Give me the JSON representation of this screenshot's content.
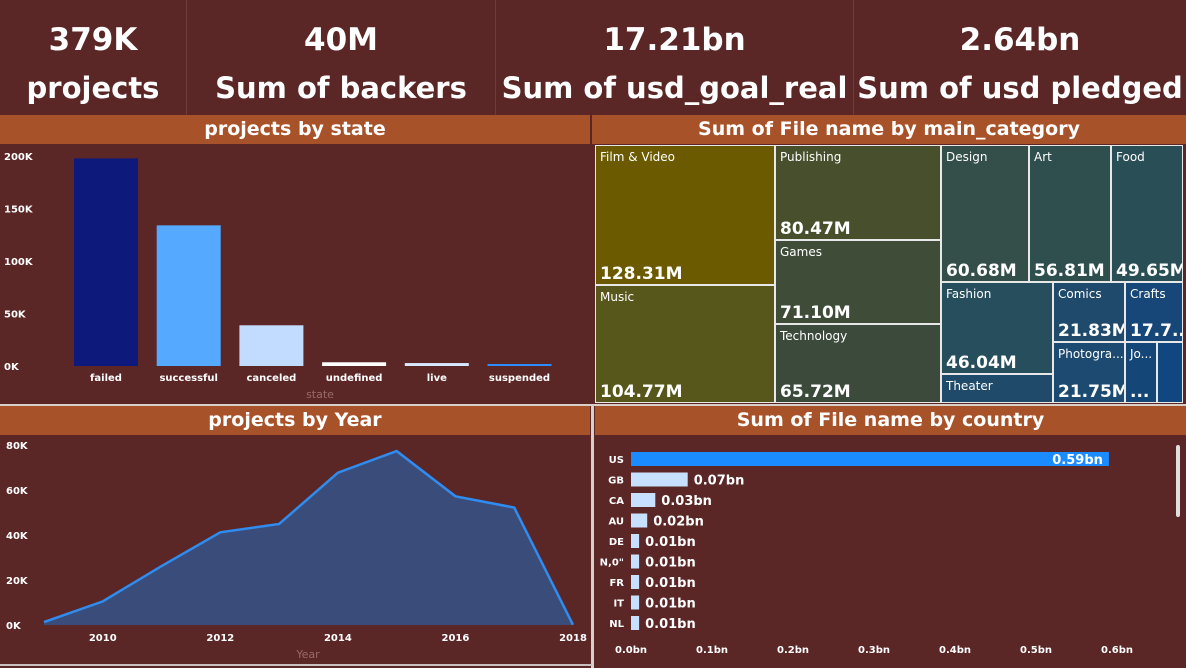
{
  "kpis": [
    {
      "value": "379K",
      "label": "projects"
    },
    {
      "value": "40M",
      "label": "Sum of backers"
    },
    {
      "value": "17.21bn",
      "label": "Sum of usd_goal_real"
    },
    {
      "value": "2.64bn",
      "label": "Sum of usd pledged"
    }
  ],
  "panels": {
    "state_title": "projects by state",
    "category_title": "Sum of File name by main_category",
    "year_title": "projects by Year",
    "country_title": "Sum of File name by country"
  },
  "treemap": [
    {
      "name": "Film & Video",
      "value": "128.31M",
      "color": "#6b5a00"
    },
    {
      "name": "Music",
      "value": "104.77M",
      "color": "#57561b"
    },
    {
      "name": "Publishing",
      "value": "80.47M",
      "color": "#474f2c"
    },
    {
      "name": "Games",
      "value": "71.10M",
      "color": "#3f4d38"
    },
    {
      "name": "Technology",
      "value": "65.72M",
      "color": "#3b4a3b"
    },
    {
      "name": "Design",
      "value": "60.68M",
      "color": "#344e4a"
    },
    {
      "name": "Art",
      "value": "56.81M",
      "color": "#2f4e4e"
    },
    {
      "name": "Food",
      "value": "49.65M",
      "color": "#2a4e55"
    },
    {
      "name": "Fashion",
      "value": "46.04M",
      "color": "#274e5c"
    },
    {
      "name": "Theater",
      "value": "",
      "color": "#1f4a6a"
    },
    {
      "name": "Comics",
      "value": "21.83M",
      "color": "#204a6c"
    },
    {
      "name": "Photogra...",
      "value": "21.75M",
      "color": "#1c4a70"
    },
    {
      "name": "Crafts",
      "value": "17.7...",
      "color": "#174778"
    },
    {
      "name": "Jo...",
      "value": "...",
      "color": "#154678"
    },
    {
      "name": "",
      "value": "",
      "color": "#114781"
    }
  ],
  "chart_data": [
    {
      "type": "bar",
      "title": "projects by state",
      "xlabel": "state",
      "ylabel": "",
      "categories": [
        "failed",
        "successful",
        "canceled",
        "undefined",
        "live",
        "suspended"
      ],
      "values": [
        197719,
        133956,
        38779,
        3562,
        2799,
        1846
      ],
      "colors": [
        "#0e197c",
        "#55a9ff",
        "#c2dcff",
        "#ffffff",
        "#d8e8ff",
        "#2d8cff"
      ],
      "yticks": [
        "0K",
        "50K",
        "100K",
        "150K",
        "200K"
      ],
      "ylim": [
        0,
        200000
      ]
    },
    {
      "type": "area",
      "title": "projects by Year",
      "xlabel": "Year",
      "ylabel": "",
      "x": [
        2009,
        2010,
        2011,
        2012,
        2013,
        2014,
        2015,
        2016,
        2017,
        2018
      ],
      "values": [
        1300,
        10500,
        26200,
        41200,
        44900,
        67700,
        77300,
        57200,
        52200,
        100
      ],
      "xticks": [
        "2010",
        "2012",
        "2014",
        "2016",
        "2018"
      ],
      "yticks": [
        "0K",
        "20K",
        "40K",
        "60K",
        "80K"
      ],
      "xlim": [
        2009,
        2018
      ],
      "ylim": [
        0,
        80000
      ],
      "line_color": "#2f8cf0",
      "fill_color": "#3a4d7a"
    },
    {
      "type": "bar",
      "orientation": "horizontal",
      "title": "Sum of File name by country",
      "categories": [
        "US",
        "GB",
        "CA",
        "AU",
        "DE",
        "N,0\"",
        "FR",
        "IT",
        "NL"
      ],
      "values": [
        0.59,
        0.07,
        0.03,
        0.02,
        0.01,
        0.01,
        0.01,
        0.01,
        0.01
      ],
      "labels": [
        "0.59bn",
        "0.07bn",
        "0.03bn",
        "0.02bn",
        "0.01bn",
        "0.01bn",
        "0.01bn",
        "0.01bn",
        "0.01bn"
      ],
      "xticks": [
        "0.0bn",
        "0.1bn",
        "0.2bn",
        "0.3bn",
        "0.4bn",
        "0.5bn",
        "0.6bn"
      ],
      "xlim": [
        0,
        0.6
      ],
      "colors": [
        "#1a8cff",
        "#c8e0ff"
      ]
    }
  ]
}
